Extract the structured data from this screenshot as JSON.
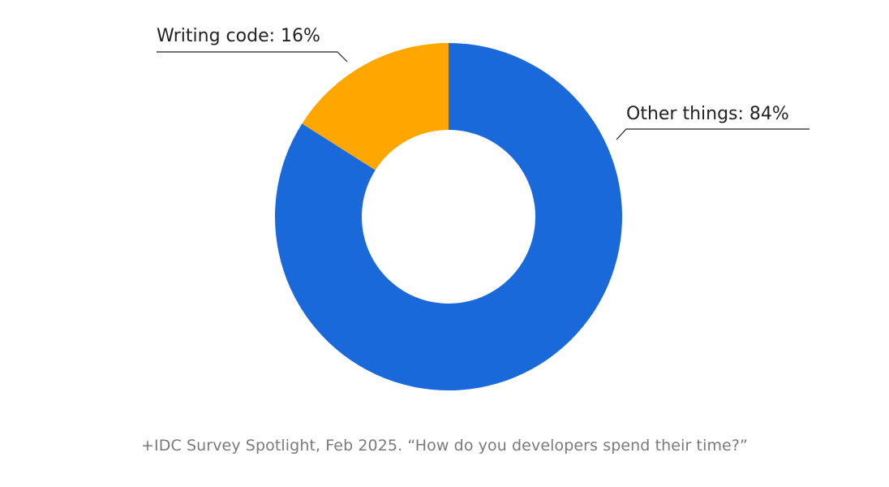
{
  "chart_data": {
    "type": "pie",
    "style": "donut",
    "title": "",
    "slices": [
      {
        "label": "Writing code",
        "value": 16,
        "color": "#FFA600"
      },
      {
        "label": "Other things",
        "value": 84,
        "color": "#1A69DB"
      }
    ],
    "data_labels": [
      "Writing code: 16%",
      "Other things: 84%"
    ],
    "unit": "%"
  },
  "footnote": "+IDC Survey Spotlight, Feb 2025. “How do you developers spend their time?”"
}
